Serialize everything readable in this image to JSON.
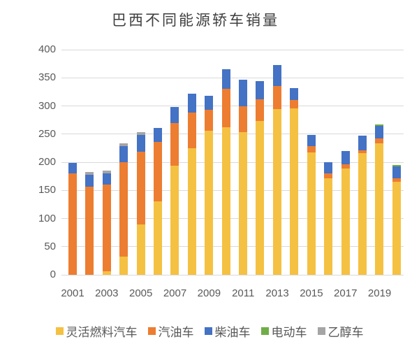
{
  "title": "巴西不同能源轿车销量",
  "chart_data": {
    "type": "bar",
    "stacked": true,
    "title": "巴西不同能源轿车销量",
    "categories": [
      2001,
      2002,
      2003,
      2004,
      2005,
      2006,
      2007,
      2008,
      2009,
      2010,
      2011,
      2012,
      2013,
      2014,
      2015,
      2016,
      2017,
      2018,
      2019,
      2020
    ],
    "x_tick_labels": [
      "2001",
      "2003",
      "2005",
      "2007",
      "2009",
      "2011",
      "2013",
      "2015",
      "2017",
      "2019"
    ],
    "series": [
      {
        "key": "flex-fuel",
        "name": "灵活燃料汽车",
        "color": "#F5C142",
        "values": [
          0,
          0,
          6,
          32,
          89,
          130,
          194,
          225,
          256,
          262,
          254,
          273,
          295,
          296,
          218,
          171,
          189,
          216,
          234,
          165
        ]
      },
      {
        "key": "gasoline",
        "name": "汽油车",
        "color": "#ED7D31",
        "values": [
          180,
          157,
          154,
          168,
          130,
          106,
          76,
          63,
          37,
          68,
          45,
          39,
          41,
          15,
          10,
          9,
          7,
          5,
          8,
          6
        ]
      },
      {
        "key": "diesel",
        "name": "柴油车",
        "color": "#4472C4",
        "values": [
          19,
          21,
          20,
          28,
          30,
          25,
          28,
          34,
          25,
          35,
          47,
          32,
          37,
          21,
          20,
          20,
          24,
          26,
          23,
          22
        ]
      },
      {
        "key": "electric",
        "name": "电动车",
        "color": "#70AD47",
        "values": [
          0,
          0,
          0,
          0,
          0,
          0,
          0,
          0,
          0,
          0,
          0,
          0,
          0,
          0,
          0,
          0,
          0,
          0,
          2,
          2
        ]
      },
      {
        "key": "ethanol",
        "name": "乙醇车",
        "color": "#A5A5A5",
        "values": [
          0,
          5,
          5,
          5,
          4,
          0,
          0,
          0,
          0,
          0,
          0,
          0,
          0,
          0,
          0,
          0,
          0,
          0,
          0,
          0
        ]
      }
    ],
    "ylim": [
      0,
      400
    ],
    "y_ticks": [
      0,
      50,
      100,
      150,
      200,
      250,
      300,
      350,
      400
    ],
    "grid": true,
    "gridline_color": "#D9D9D9",
    "legend_position": "bottom"
  }
}
